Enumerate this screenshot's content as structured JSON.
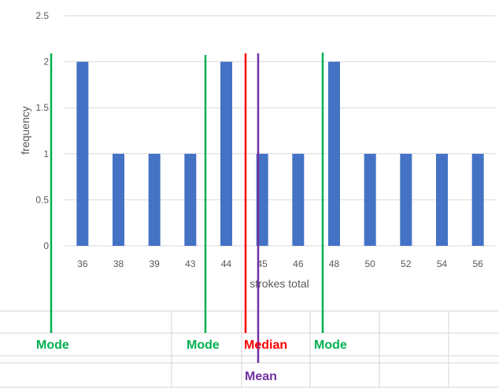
{
  "chart_data": {
    "type": "bar",
    "xlabel": "strokes total",
    "ylabel": "frequency",
    "categories": [
      "36",
      "38",
      "39",
      "43",
      "44",
      "45",
      "46",
      "48",
      "50",
      "52",
      "54",
      "56"
    ],
    "values": [
      2,
      1,
      1,
      1,
      2,
      1,
      1,
      2,
      1,
      1,
      1,
      1
    ],
    "ylim": [
      0,
      2.5
    ],
    "yticks": [
      "0",
      "0.5",
      "1",
      "1.5",
      "2",
      "2.5"
    ],
    "grid": true,
    "bar_color": "#4472C4",
    "annotations": [
      {
        "label": "Mode",
        "color": "#00B050"
      },
      {
        "label": "Mode",
        "color": "#00B050"
      },
      {
        "label": "Median",
        "color": "#FF0000"
      },
      {
        "label": "Mode",
        "color": "#00B050"
      },
      {
        "label": "Mean",
        "color": "#7030A0"
      }
    ]
  }
}
